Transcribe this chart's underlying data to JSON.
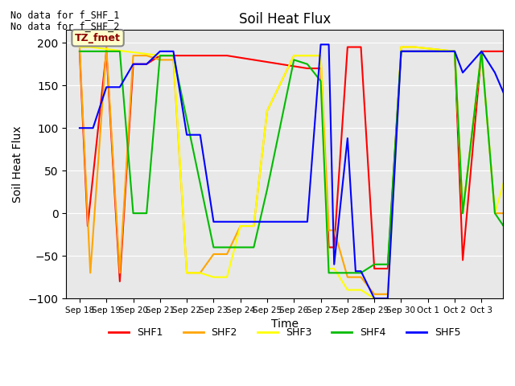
{
  "title": "Soil Heat Flux",
  "xlabel": "Time",
  "ylabel": "Soil Heat Flux",
  "ylim": [
    -100,
    215
  ],
  "yticks": [
    -100,
    -50,
    0,
    50,
    100,
    150,
    200
  ],
  "bg_color": "#e8e8e8",
  "note_line1": "No data for f_SHF_1",
  "note_line2": "No data for f_SHF_2",
  "tz_label": "TZ_fmet",
  "series": {
    "SHF1": {
      "color": "#ff0000",
      "x": [
        18.0,
        18.3,
        19.0,
        19.5,
        20.0,
        20.5,
        21.0,
        21.5,
        22.0,
        22.5,
        23.0,
        23.5,
        26.5,
        27.0,
        27.3,
        27.5,
        28.0,
        28.5,
        29.0,
        29.5,
        30.0,
        30.5,
        32.0,
        32.3,
        33.0,
        33.5,
        35.0
      ],
      "y": [
        190,
        -15,
        190,
        -80,
        175,
        175,
        185,
        185,
        185,
        185,
        185,
        185,
        170,
        170,
        -40,
        -40,
        195,
        195,
        -65,
        -65,
        190,
        190,
        190,
        -55,
        190,
        190,
        190
      ]
    },
    "SHF2": {
      "color": "#ffa500",
      "x": [
        18.0,
        18.4,
        19.0,
        19.5,
        20.0,
        20.5,
        21.0,
        21.5,
        22.0,
        22.5,
        23.0,
        23.5,
        24.0,
        24.5,
        25.0,
        26.0,
        26.5,
        27.0,
        27.3,
        27.5,
        28.0,
        28.5,
        29.0,
        29.5,
        30.0,
        30.5,
        32.0,
        32.3,
        33.0,
        33.5,
        35.0
      ],
      "y": [
        195,
        -70,
        195,
        -70,
        185,
        185,
        180,
        180,
        -70,
        -70,
        -48,
        -48,
        -15,
        -15,
        120,
        185,
        185,
        185,
        -20,
        -20,
        -75,
        -75,
        -95,
        -95,
        195,
        195,
        190,
        0,
        190,
        0,
        0
      ]
    },
    "SHF3": {
      "color": "#ffff00",
      "x": [
        18.0,
        18.4,
        21.0,
        21.5,
        22.0,
        22.5,
        23.0,
        23.5,
        24.0,
        24.5,
        25.0,
        26.0,
        26.5,
        27.0,
        27.3,
        27.5,
        28.0,
        28.5,
        29.0,
        29.5,
        30.0,
        30.5,
        32.0,
        32.3,
        33.0,
        33.5,
        35.0
      ],
      "y": [
        195,
        195,
        185,
        185,
        -70,
        -70,
        -75,
        -75,
        -15,
        -15,
        120,
        185,
        185,
        185,
        -65,
        -65,
        -90,
        -90,
        -100,
        -100,
        195,
        195,
        190,
        0,
        190,
        0,
        165
      ]
    },
    "SHF4": {
      "color": "#00bb00",
      "x": [
        18.0,
        18.5,
        19.0,
        19.5,
        20.0,
        20.5,
        21.0,
        21.5,
        23.0,
        23.5,
        24.0,
        24.5,
        25.0,
        26.0,
        26.5,
        27.0,
        27.3,
        27.5,
        28.0,
        28.5,
        29.0,
        29.5,
        30.0,
        30.5,
        32.0,
        32.3,
        33.0,
        33.5,
        35.0
      ],
      "y": [
        190,
        190,
        190,
        190,
        0,
        0,
        185,
        185,
        -40,
        -40,
        -40,
        -40,
        28,
        180,
        175,
        155,
        -70,
        -70,
        -70,
        -70,
        -60,
        -60,
        190,
        190,
        190,
        0,
        190,
        0,
        -70
      ]
    },
    "SHF5": {
      "color": "#0000ff",
      "x": [
        18.0,
        18.5,
        19.0,
        19.5,
        20.0,
        20.5,
        21.0,
        21.5,
        22.0,
        22.5,
        23.0,
        23.3,
        25.8,
        26.0,
        26.5,
        27.0,
        27.3,
        27.5,
        28.0,
        28.3,
        28.5,
        29.0,
        29.5,
        30.0,
        30.5,
        32.0,
        32.3,
        33.0,
        33.5,
        35.0
      ],
      "y": [
        100,
        100,
        148,
        148,
        175,
        175,
        190,
        190,
        92,
        92,
        -10,
        -10,
        -10,
        -10,
        -10,
        198,
        198,
        -60,
        88,
        -68,
        -68,
        -100,
        -100,
        190,
        190,
        190,
        165,
        190,
        165,
        55
      ]
    }
  },
  "xtick_labels": [
    "Sep 18",
    "Sep 19",
    "Sep 20",
    "Sep 21",
    "Sep 22",
    "Sep 23",
    "Sep 24",
    "Sep 25",
    "Sep 26",
    "Sep 27",
    "Sep 28",
    "Sep 29",
    "Sep 30",
    "Oct 1",
    "Oct 2",
    "Oct 3"
  ],
  "xtick_positions": [
    18,
    19,
    20,
    21,
    22,
    23,
    24,
    25,
    26,
    27,
    28,
    29,
    30,
    31,
    32,
    33
  ],
  "xlim": [
    17.5,
    33.8
  ],
  "legend_entries": [
    "SHF1",
    "SHF2",
    "SHF3",
    "SHF4",
    "SHF5"
  ],
  "legend_colors": [
    "#ff0000",
    "#ffa500",
    "#ffff00",
    "#00bb00",
    "#0000ff"
  ]
}
